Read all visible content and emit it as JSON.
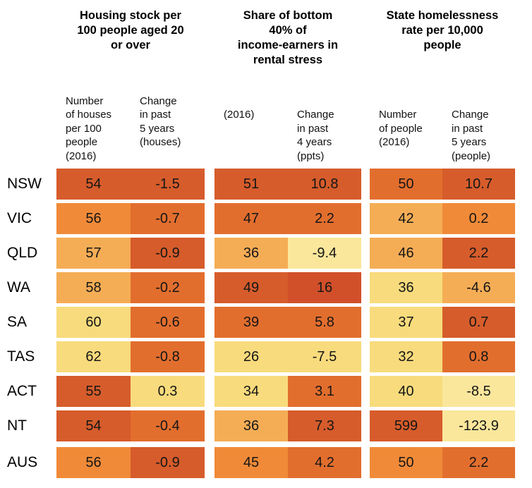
{
  "palette": {
    "darkest": "#d1502a",
    "dark": "#d65c2b",
    "middark": "#e26e2e",
    "medium": "#f08a38",
    "tan": "#f5ad55",
    "yellow": "#f8db7c",
    "lightyellow": "#fae79c"
  },
  "groups": [
    {
      "title": "Housing stock per\n100 people aged 20\nor over",
      "subheaders": [
        "Number\nof houses\nper 100\npeople\n(2016)",
        "Change\nin past\n5 years\n(houses)"
      ]
    },
    {
      "title": "Share of bottom\n40% of\nincome-earners in\nrental stress",
      "subheaders": [
        "(2016)",
        "Change\nin past\n4 years\n(ppts)"
      ]
    },
    {
      "title": "State homelessness\nrate per 10,000\npeople",
      "subheaders": [
        "Number\nof people\n(2016)",
        "Change\nin past\n5 years\n(people)"
      ]
    }
  ],
  "rows": [
    {
      "label": "NSW",
      "cells": [
        {
          "v": "54",
          "c": "dark"
        },
        {
          "v": "-1.5",
          "c": "dark"
        },
        {
          "v": "51",
          "c": "dark"
        },
        {
          "v": "10.8",
          "c": "dark"
        },
        {
          "v": "50",
          "c": "middark"
        },
        {
          "v": "10.7",
          "c": "dark"
        }
      ]
    },
    {
      "label": "VIC",
      "cells": [
        {
          "v": "56",
          "c": "medium"
        },
        {
          "v": "-0.7",
          "c": "middark"
        },
        {
          "v": "47",
          "c": "middark"
        },
        {
          "v": "2.2",
          "c": "middark"
        },
        {
          "v": "42",
          "c": "tan"
        },
        {
          "v": "0.2",
          "c": "medium"
        }
      ]
    },
    {
      "label": "QLD",
      "cells": [
        {
          "v": "57",
          "c": "tan"
        },
        {
          "v": "-0.9",
          "c": "dark"
        },
        {
          "v": "36",
          "c": "tan"
        },
        {
          "v": "-9.4",
          "c": "lightyellow"
        },
        {
          "v": "46",
          "c": "tan"
        },
        {
          "v": "2.2",
          "c": "dark"
        }
      ]
    },
    {
      "label": "WA",
      "cells": [
        {
          "v": "58",
          "c": "tan"
        },
        {
          "v": "-0.2",
          "c": "middark"
        },
        {
          "v": "49",
          "c": "dark"
        },
        {
          "v": "16",
          "c": "darkest"
        },
        {
          "v": "36",
          "c": "yellow"
        },
        {
          "v": "-4.6",
          "c": "tan"
        }
      ]
    },
    {
      "label": "SA",
      "cells": [
        {
          "v": "60",
          "c": "yellow"
        },
        {
          "v": "-0.6",
          "c": "middark"
        },
        {
          "v": "39",
          "c": "middark"
        },
        {
          "v": "5.8",
          "c": "middark"
        },
        {
          "v": "37",
          "c": "yellow"
        },
        {
          "v": "0.7",
          "c": "dark"
        }
      ]
    },
    {
      "label": "TAS",
      "cells": [
        {
          "v": "62",
          "c": "yellow"
        },
        {
          "v": "-0.8",
          "c": "middark"
        },
        {
          "v": "26",
          "c": "yellow"
        },
        {
          "v": "-7.5",
          "c": "yellow"
        },
        {
          "v": "32",
          "c": "yellow"
        },
        {
          "v": "0.8",
          "c": "middark"
        }
      ]
    },
    {
      "label": "ACT",
      "cells": [
        {
          "v": "55",
          "c": "dark"
        },
        {
          "v": "0.3",
          "c": "yellow"
        },
        {
          "v": "34",
          "c": "yellow"
        },
        {
          "v": "3.1",
          "c": "middark"
        },
        {
          "v": "40",
          "c": "yellow"
        },
        {
          "v": "-8.5",
          "c": "lightyellow"
        }
      ]
    },
    {
      "label": "NT",
      "cells": [
        {
          "v": "54",
          "c": "dark"
        },
        {
          "v": "-0.4",
          "c": "middark"
        },
        {
          "v": "36",
          "c": "tan"
        },
        {
          "v": "7.3",
          "c": "dark"
        },
        {
          "v": "599",
          "c": "dark"
        },
        {
          "v": "-123.9",
          "c": "lightyellow"
        }
      ]
    },
    {
      "label": "AUS",
      "summary": true,
      "cells": [
        {
          "v": "56",
          "c": "medium"
        },
        {
          "v": "-0.9",
          "c": "dark"
        },
        {
          "v": "45",
          "c": "medium"
        },
        {
          "v": "4.2",
          "c": "middark"
        },
        {
          "v": "50",
          "c": "medium"
        },
        {
          "v": "2.2",
          "c": "middark"
        }
      ]
    }
  ],
  "chart_data": {
    "type": "heatmap",
    "column_groups": [
      "Housing stock per 100 people aged 20 or over",
      "Share of bottom 40% of income-earners in rental stress",
      "State homelessness rate per 10,000 people"
    ],
    "columns": [
      "Number of houses per 100 people (2016)",
      "Change in past 5 years (houses)",
      "(2016)",
      "Change in past 4 years (ppts)",
      "Number of people (2016)",
      "Change in past 5 years (people)"
    ],
    "rows": [
      "NSW",
      "VIC",
      "QLD",
      "WA",
      "SA",
      "TAS",
      "ACT",
      "NT",
      "AUS"
    ],
    "values": [
      [
        54,
        -1.5,
        51,
        10.8,
        50,
        10.7
      ],
      [
        56,
        -0.7,
        47,
        2.2,
        42,
        0.2
      ],
      [
        57,
        -0.9,
        36,
        -9.4,
        46,
        2.2
      ],
      [
        58,
        -0.2,
        49,
        16,
        36,
        -4.6
      ],
      [
        60,
        -0.6,
        39,
        5.8,
        37,
        0.7
      ],
      [
        62,
        -0.8,
        26,
        -7.5,
        32,
        0.8
      ],
      [
        55,
        0.3,
        34,
        3.1,
        40,
        -8.5
      ],
      [
        54,
        -0.4,
        36,
        7.3,
        599,
        -123.9
      ],
      [
        56,
        -0.9,
        45,
        4.2,
        50,
        2.2
      ]
    ],
    "legend_position": "none",
    "grid": false,
    "color_scale_note": "pale yellow = low/better, dark red-orange = high/worse"
  }
}
